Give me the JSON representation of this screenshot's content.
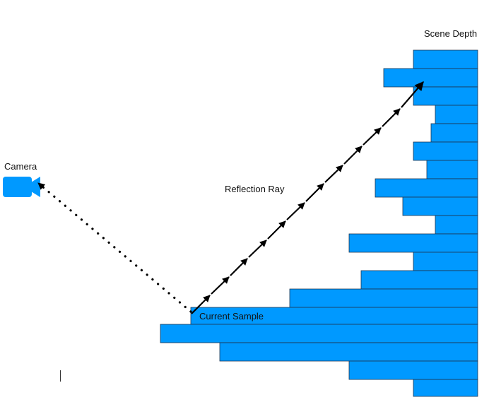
{
  "labels": {
    "scene_depth": "Scene Depth",
    "camera": "Camera",
    "reflection_ray": "Reflection Ray",
    "current_sample": "Current Sample"
  },
  "colors": {
    "bar_fill": "#0099ff",
    "bar_stroke": "#1f3550",
    "line": "#000000",
    "text": "#111111",
    "background": "#ffffff"
  },
  "icons": {
    "camera": "video-camera-icon"
  }
}
